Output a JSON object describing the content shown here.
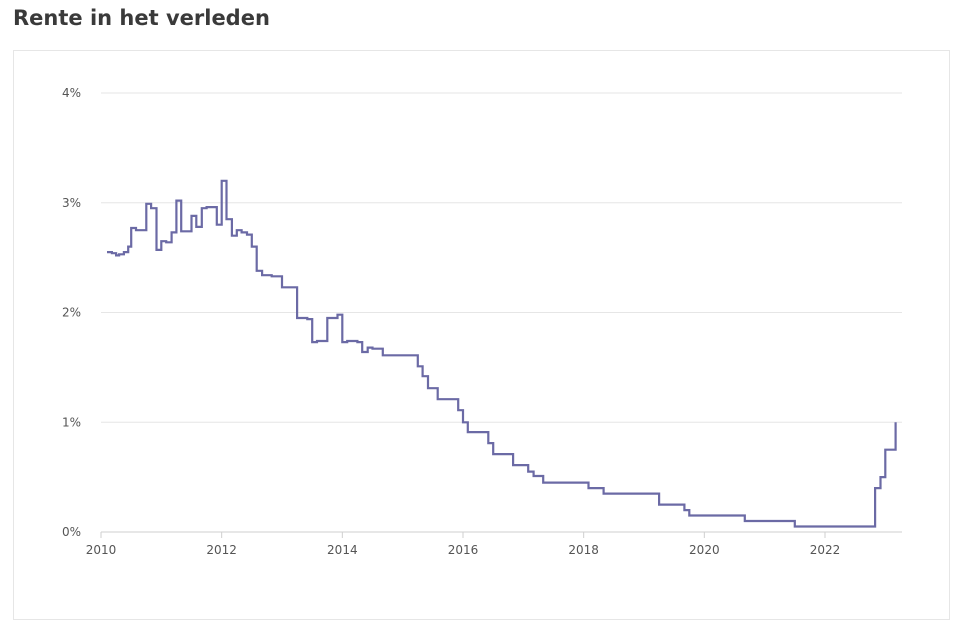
{
  "page": {
    "title": "Rente in het verleden"
  },
  "chart_data": {
    "type": "line",
    "title": "",
    "xlabel": "",
    "ylabel": "",
    "xlim": [
      2010,
      2023.3
    ],
    "ylim": [
      0,
      4
    ],
    "x_ticks": [
      2010,
      2012,
      2014,
      2016,
      2018,
      2020,
      2022
    ],
    "x_tick_labels": [
      "2010",
      "2012",
      "2014",
      "2016",
      "2018",
      "2020",
      "2022"
    ],
    "y_ticks": [
      0,
      1,
      2,
      3,
      4
    ],
    "y_tick_labels": [
      "0%",
      "1%",
      "2%",
      "3%",
      "4%"
    ],
    "grid": true,
    "legend": "none",
    "step": true,
    "series_color": "#6b6aa5",
    "series": [
      {
        "x": [
          2010.1,
          2010.18,
          2010.25,
          2010.3,
          2010.38,
          2010.45,
          2010.5,
          2010.58,
          2010.67,
          2010.75,
          2010.83,
          2010.92,
          2011.0,
          2011.08,
          2011.17,
          2011.25,
          2011.33,
          2011.5,
          2011.58,
          2011.67,
          2011.75,
          2011.92,
          2012.0,
          2012.08,
          2012.17,
          2012.25,
          2012.33,
          2012.42,
          2012.5,
          2012.58,
          2012.67,
          2012.83,
          2013.0,
          2013.25,
          2013.42,
          2013.5,
          2013.58,
          2013.75,
          2013.92,
          2014.0,
          2014.08,
          2014.25,
          2014.33,
          2014.42,
          2014.5,
          2014.67,
          2014.83,
          2015.25,
          2015.33,
          2015.42,
          2015.58,
          2015.92,
          2016.0,
          2016.08,
          2016.42,
          2016.5,
          2016.83,
          2017.08,
          2017.17,
          2017.33,
          2018.08,
          2018.33,
          2018.58,
          2019.25,
          2019.67,
          2019.75,
          2020.67,
          2021.5,
          2022.67,
          2022.83,
          2022.92,
          2023.0,
          2023.17,
          2023.17
        ],
        "y": [
          2.55,
          2.54,
          2.52,
          2.53,
          2.55,
          2.6,
          2.77,
          2.75,
          2.75,
          2.99,
          2.95,
          2.57,
          2.65,
          2.64,
          2.73,
          3.02,
          2.74,
          2.88,
          2.78,
          2.95,
          2.96,
          2.8,
          3.2,
          2.85,
          2.7,
          2.75,
          2.73,
          2.71,
          2.6,
          2.38,
          2.34,
          2.33,
          2.23,
          1.95,
          1.94,
          1.73,
          1.74,
          1.95,
          1.98,
          1.73,
          1.74,
          1.73,
          1.64,
          1.68,
          1.67,
          1.61,
          1.61,
          1.51,
          1.42,
          1.31,
          1.21,
          1.11,
          1.0,
          0.91,
          0.81,
          0.71,
          0.61,
          0.55,
          0.51,
          0.45,
          0.4,
          0.35,
          0.35,
          0.25,
          0.2,
          0.15,
          0.1,
          0.05,
          0.05,
          0.4,
          0.5,
          0.75,
          0.75,
          1.0
        ]
      }
    ]
  }
}
